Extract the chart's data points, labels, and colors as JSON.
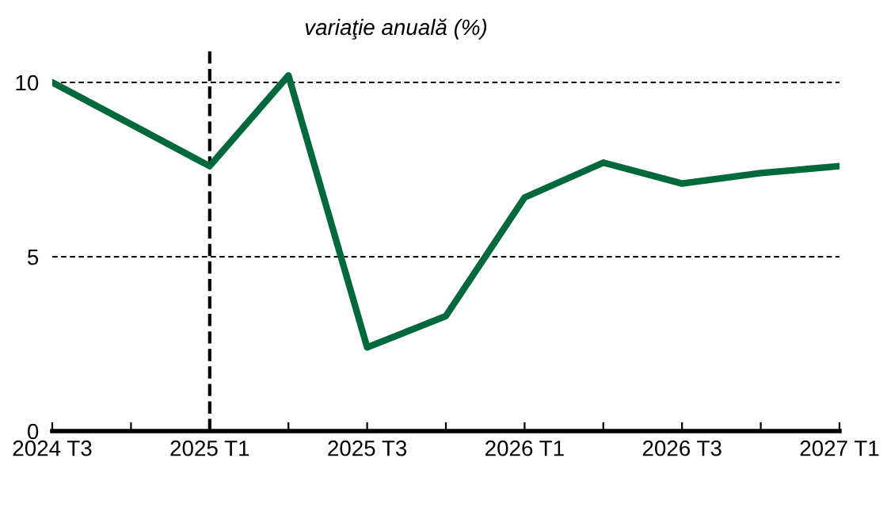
{
  "chart_data": {
    "type": "line",
    "title": "variaţie anuală (%)",
    "categories": [
      "2024 T3",
      null,
      "2025 T1",
      null,
      "2025 T3",
      null,
      "2026 T1",
      null,
      "2026 T3",
      null,
      "2027 T1"
    ],
    "series": [
      {
        "color": "#00693c",
        "values": [
          10.0,
          8.8,
          7.6,
          10.2,
          2.4,
          3.3,
          6.7,
          7.7,
          7.1,
          7.4,
          7.6
        ]
      }
    ],
    "ylim": [
      0,
      11
    ],
    "yticks": [
      0,
      5,
      10
    ],
    "grid": "y",
    "legend": false,
    "marker": "none",
    "line_style": "solid",
    "ref_lines": [
      {
        "axis": "x",
        "value": "2025 T1",
        "line_style": "dashed",
        "color": "#000000"
      }
    ]
  }
}
